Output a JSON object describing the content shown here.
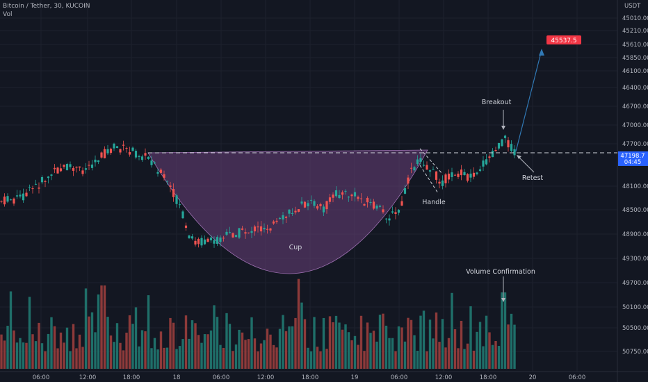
{
  "header": {
    "symbol": "Bitcoin / Tether, 30, KUCOIN",
    "indicator": "Vol"
  },
  "colors": {
    "background": "#131722",
    "up": "#26a69a",
    "down": "#ef5350",
    "cup_fill": "#6a3f7a",
    "arrow": "#3179b5",
    "price_label": "#2962ff",
    "target_label": "#f23645"
  },
  "chart_data": {
    "type": "candlestick",
    "y_axis": {
      "currency": "USDT",
      "ticks": [
        45010.0,
        45210.0,
        45610.0,
        45850.0,
        46100.0,
        46400.0,
        46700.0,
        47000.0,
        47700.0,
        48100.0,
        48500.0,
        48900.0,
        49300.0,
        49700.0,
        50100.0,
        50500.0,
        50750.0
      ]
    },
    "x_axis": {
      "ticks": [
        "06:00",
        "12:00",
        "18:00",
        "18",
        "06:00",
        "12:00",
        "18:00",
        "19",
        "06:00",
        "12:00",
        "18:00",
        "20",
        "06:00"
      ]
    },
    "current_price": {
      "value": "47198.7",
      "countdown": "04:45"
    },
    "target_price": "45537.5",
    "annotations": {
      "cup": "Cup",
      "handle": "Handle",
      "breakout": "Breakout",
      "retest": "Retest",
      "volume": "Volume Confirmation"
    }
  }
}
